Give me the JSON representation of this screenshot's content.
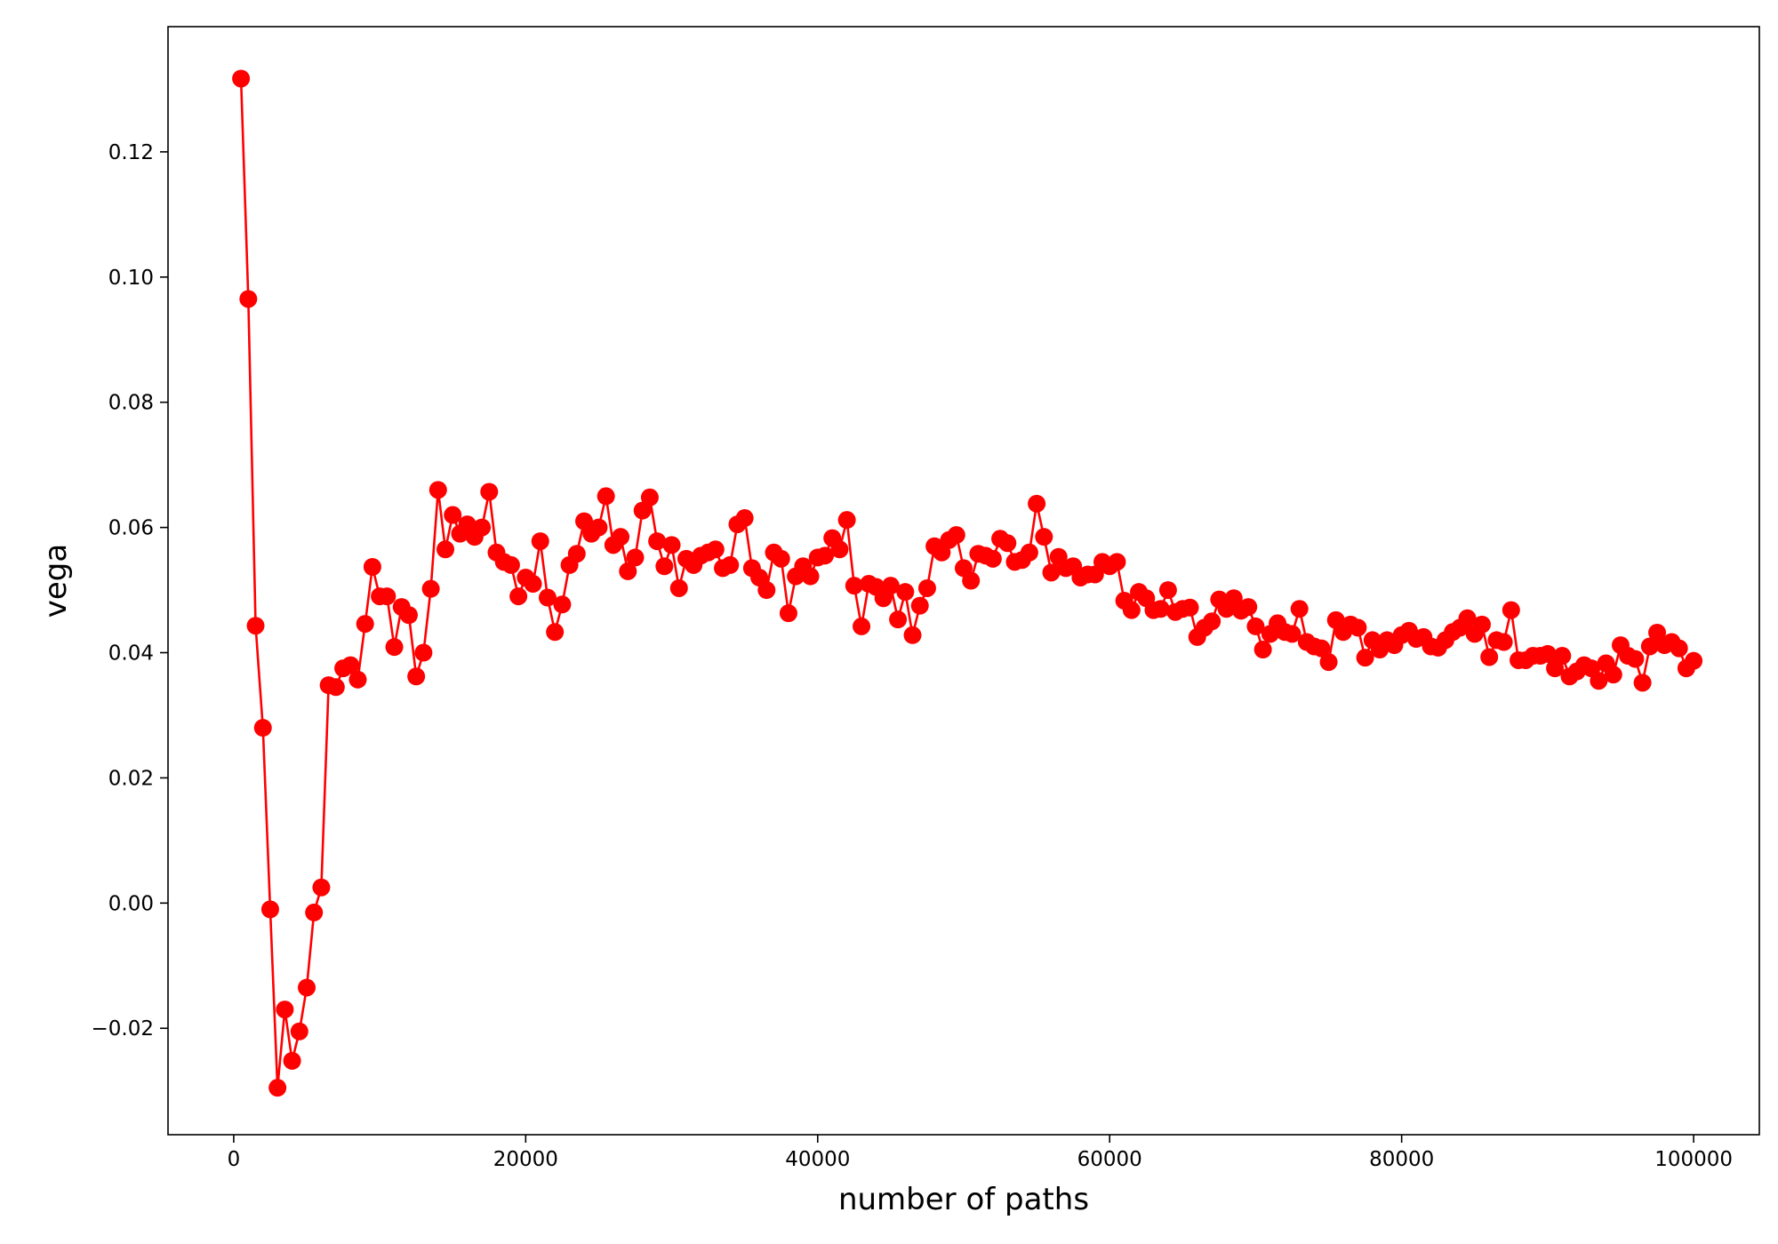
{
  "chart_data": {
    "type": "line",
    "xlabel": "number of paths",
    "ylabel": "vega",
    "xlim": [
      -4500,
      104500
    ],
    "ylim": [
      -0.037,
      0.14
    ],
    "grid": false,
    "x_ticks": [
      0,
      20000,
      40000,
      60000,
      80000,
      100000
    ],
    "x_tick_labels": [
      "0",
      "20000",
      "40000",
      "60000",
      "80000",
      "100000"
    ],
    "y_ticks": [
      -0.02,
      0.0,
      0.02,
      0.04,
      0.06,
      0.08,
      0.1,
      0.12
    ],
    "y_tick_labels": [
      "−0.02",
      "0.00",
      "0.02",
      "0.04",
      "0.06",
      "0.08",
      "0.10",
      "0.12"
    ],
    "colors": {
      "series": "#ff0000",
      "axis": "#000000",
      "background": "#ffffff"
    },
    "series": [
      {
        "marker": "circle",
        "x": [
          500,
          1000,
          1500,
          2000,
          2500,
          3000,
          3500,
          4000,
          4500,
          5000,
          5500,
          6000,
          6500,
          7000,
          7500,
          8000,
          8500,
          9000,
          9500,
          10000,
          10500,
          11000,
          11500,
          12000,
          12500,
          13000,
          13500,
          14000,
          14500,
          15000,
          15500,
          16000,
          16500,
          17000,
          17500,
          18000,
          18500,
          19000,
          19500,
          20000,
          20500,
          21000,
          21500,
          22000,
          22500,
          23000,
          23500,
          24000,
          24500,
          25000,
          25500,
          26000,
          26500,
          27000,
          27500,
          28000,
          28500,
          29000,
          29500,
          30000,
          30500,
          31000,
          31500,
          32000,
          32500,
          33000,
          33500,
          34000,
          34500,
          35000,
          35500,
          36000,
          36500,
          37000,
          37500,
          38000,
          38500,
          39000,
          39500,
          40000,
          40500,
          41000,
          41500,
          42000,
          42500,
          43000,
          43500,
          44000,
          44500,
          45000,
          45500,
          46000,
          46500,
          47000,
          47500,
          48000,
          48500,
          49000,
          49500,
          50000,
          50500,
          51000,
          51500,
          52000,
          52500,
          53000,
          53500,
          54000,
          54500,
          55000,
          55500,
          56000,
          56500,
          57000,
          57500,
          58000,
          58500,
          59000,
          59500,
          60000,
          60500,
          61000,
          61500,
          62000,
          62500,
          63000,
          63500,
          64000,
          64500,
          65000,
          65500,
          66000,
          66500,
          67000,
          67500,
          68000,
          68500,
          69000,
          69500,
          70000,
          70500,
          71000,
          71500,
          72000,
          72500,
          73000,
          73500,
          74000,
          74500,
          75000,
          75500,
          76000,
          76500,
          77000,
          77500,
          78000,
          78500,
          79000,
          79500,
          80000,
          80500,
          81000,
          81500,
          82000,
          82500,
          83000,
          83500,
          84000,
          84500,
          85000,
          85500,
          86000,
          86500,
          87000,
          87500,
          88000,
          88500,
          89000,
          89500,
          90000,
          90500,
          91000,
          91500,
          92000,
          92500,
          93000,
          93500,
          94000,
          94500,
          95000,
          95500,
          96000,
          96500,
          97000,
          97500,
          98000,
          98500,
          99000,
          99500,
          100000
        ],
        "y": [
          0.1317,
          0.0965,
          0.0443,
          0.028,
          -0.001,
          -0.0295,
          -0.017,
          -0.0252,
          -0.0205,
          -0.0135,
          -0.0015,
          0.0025,
          0.0348,
          0.0345,
          0.0375,
          0.038,
          0.0357,
          0.0446,
          0.0537,
          0.049,
          0.049,
          0.0409,
          0.0473,
          0.046,
          0.0362,
          0.04,
          0.0502,
          0.066,
          0.0565,
          0.062,
          0.059,
          0.0605,
          0.0585,
          0.06,
          0.0657,
          0.056,
          0.0545,
          0.054,
          0.049,
          0.052,
          0.051,
          0.0578,
          0.0488,
          0.0433,
          0.0477,
          0.054,
          0.0558,
          0.061,
          0.059,
          0.06,
          0.065,
          0.0572,
          0.0585,
          0.053,
          0.0552,
          0.0627,
          0.0648,
          0.0578,
          0.0538,
          0.0572,
          0.0503,
          0.055,
          0.054,
          0.0555,
          0.056,
          0.0565,
          0.0535,
          0.054,
          0.0605,
          0.0615,
          0.0535,
          0.052,
          0.05,
          0.056,
          0.055,
          0.0463,
          0.0522,
          0.0538,
          0.0522,
          0.0552,
          0.0555,
          0.0583,
          0.0565,
          0.0612,
          0.0507,
          0.0442,
          0.051,
          0.0505,
          0.0487,
          0.0507,
          0.0453,
          0.0497,
          0.0428,
          0.0475,
          0.0503,
          0.057,
          0.056,
          0.058,
          0.0588,
          0.0535,
          0.0515,
          0.0558,
          0.0555,
          0.055,
          0.0582,
          0.0575,
          0.0545,
          0.0548,
          0.056,
          0.0638,
          0.0585,
          0.0528,
          0.0553,
          0.0535,
          0.0538,
          0.052,
          0.0525,
          0.0525,
          0.0545,
          0.0538,
          0.0545,
          0.0483,
          0.0468,
          0.0497,
          0.0487,
          0.0468,
          0.047,
          0.05,
          0.0465,
          0.047,
          0.0472,
          0.0425,
          0.044,
          0.045,
          0.0485,
          0.047,
          0.0487,
          0.0467,
          0.0473,
          0.0442,
          0.0405,
          0.043,
          0.0447,
          0.0433,
          0.043,
          0.047,
          0.0417,
          0.041,
          0.0407,
          0.0385,
          0.0452,
          0.0433,
          0.0445,
          0.044,
          0.0392,
          0.042,
          0.0405,
          0.042,
          0.0412,
          0.0428,
          0.0435,
          0.0422,
          0.0425,
          0.041,
          0.0408,
          0.042,
          0.0433,
          0.044,
          0.0455,
          0.043,
          0.0445,
          0.0393,
          0.042,
          0.0417,
          0.0468,
          0.0388,
          0.0388,
          0.0395,
          0.0395,
          0.0398,
          0.0375,
          0.0395,
          0.0362,
          0.037,
          0.038,
          0.0375,
          0.0355,
          0.0383,
          0.0365,
          0.0412,
          0.0395,
          0.039,
          0.0352,
          0.041,
          0.0432,
          0.0412,
          0.0417,
          0.0407,
          0.0375,
          0.0387
        ]
      }
    ]
  }
}
